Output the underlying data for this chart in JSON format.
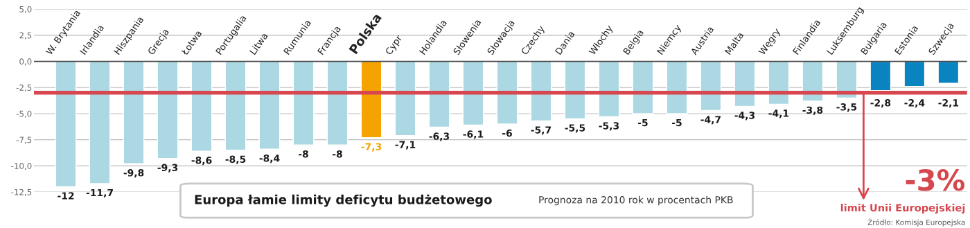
{
  "chart_data": {
    "type": "bar",
    "title": "Europa łamie limity deficytu budżetowego",
    "subtitle": "Prognoza na 2010 rok w procentach PKB",
    "annotations": [
      "Źródło: Komisja Europejska"
    ],
    "categories": [
      "W. Brytania",
      "Irlandia",
      "Hiszpania",
      "Grecja",
      "Łotwa",
      "Portugalia",
      "Litwa",
      "Rumunia",
      "Francja",
      "Polska",
      "Cypr",
      "Holandia",
      "Słowenia",
      "Słowacja",
      "Czechy",
      "Dania",
      "Włochy",
      "Belgia",
      "Niemcy",
      "Austria",
      "Malta",
      "Węgry",
      "Finlandia",
      "Luksemburg",
      "Bułgaria",
      "Estonia",
      "Szwecja"
    ],
    "values": [
      -12,
      -11.7,
      -9.8,
      -9.3,
      -8.6,
      -8.5,
      -8.4,
      -8,
      -8,
      -7.3,
      -7.1,
      -6.3,
      -6.1,
      -6,
      -5.7,
      -5.5,
      -5.3,
      -5,
      -5,
      -4.7,
      -4.3,
      -4.1,
      -3.8,
      -3.5,
      -2.8,
      -2.4,
      -2.1
    ],
    "value_labels": [
      "-12",
      "-11,7",
      "-9,8",
      "-9,3",
      "-8,6",
      "-8,5",
      "-8,4",
      "-8",
      "-8",
      "-7,3",
      "-7,1",
      "-6,3",
      "-6,1",
      "-6",
      "-5,7",
      "-5,5",
      "-5,3",
      "-5",
      "-5",
      "-4,7",
      "-4,3",
      "-4,1",
      "-3,8",
      "-3,5",
      "-2,8",
      "-2,4",
      "-2,1"
    ],
    "colors": [
      "#acd8e3",
      "#acd8e3",
      "#acd8e3",
      "#acd8e3",
      "#acd8e3",
      "#acd8e3",
      "#acd8e3",
      "#acd8e3",
      "#acd8e3",
      "#f4a300",
      "#acd8e3",
      "#acd8e3",
      "#acd8e3",
      "#acd8e3",
      "#acd8e3",
      "#acd8e3",
      "#acd8e3",
      "#acd8e3",
      "#acd8e3",
      "#acd8e3",
      "#acd8e3",
      "#acd8e3",
      "#acd8e3",
      "#acd8e3",
      "#0a84c0",
      "#0a84c0",
      "#0a84c0"
    ],
    "ylim": [
      -12.5,
      5
    ],
    "yticks": [
      {
        "value": 5,
        "label": "5,0"
      },
      {
        "value": 2.5,
        "label": "2,5"
      },
      {
        "value": 0,
        "label": "0,0"
      },
      {
        "value": -2.5,
        "label": "-2,5"
      },
      {
        "value": -5,
        "label": "-5,0"
      },
      {
        "value": -7.5,
        "label": "-7,5"
      },
      {
        "value": -10,
        "label": "-10,0"
      },
      {
        "value": -12.5,
        "label": "-12,5"
      }
    ],
    "grid": "y",
    "ref_lines": [
      {
        "axis": "y",
        "value": -3,
        "label": "-3%\nlimit Unii Europejskiej",
        "color": "#d6474f"
      }
    ]
  }
}
